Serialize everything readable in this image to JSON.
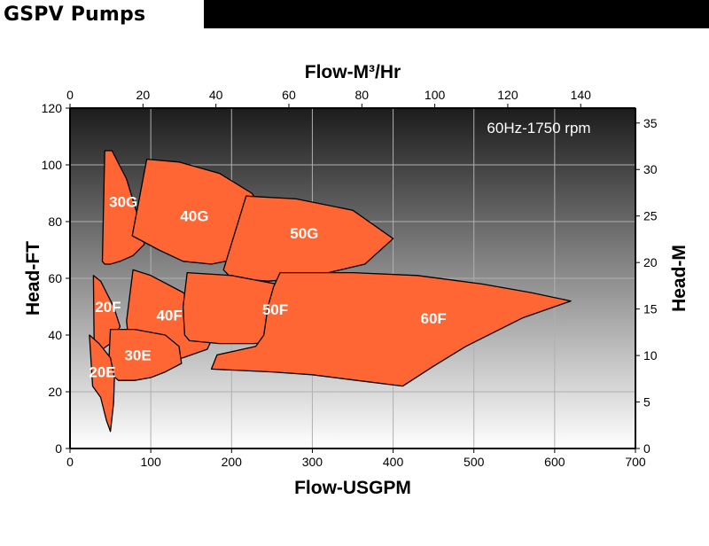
{
  "header": {
    "title": "GSPV Pumps"
  },
  "chart_data": {
    "type": "area",
    "title": "",
    "subtitle": "60Hz-1750 rpm",
    "xlabel": "Flow-USGPM",
    "ylabel": "Head-FT",
    "x2label": "Flow-M³/Hr",
    "y2label": "Head-M",
    "xlim": [
      0,
      700
    ],
    "ylim": [
      0,
      120
    ],
    "x2lim": [
      0,
      155
    ],
    "y2lim": [
      0,
      36.6
    ],
    "x_ticks": [
      0,
      100,
      200,
      300,
      400,
      500,
      600,
      700
    ],
    "y_ticks": [
      0,
      20,
      40,
      60,
      80,
      100,
      120
    ],
    "x2_ticks": [
      0,
      20,
      40,
      60,
      80,
      100,
      120,
      140
    ],
    "y2_ticks": [
      0,
      5,
      10,
      15,
      20,
      25,
      30,
      35
    ],
    "grid": true,
    "colors": {
      "region_fill": "#FF6633",
      "region_stroke": "#000000",
      "label": "#FFFFFF",
      "plot_top": "#1a1a1a",
      "plot_bottom": "#ffffff"
    },
    "series": [
      {
        "name": "30G",
        "label_at": [
          66,
          87
        ],
        "points": [
          [
            43,
            105
          ],
          [
            52,
            105
          ],
          [
            70,
            95
          ],
          [
            86,
            80
          ],
          [
            92,
            72
          ],
          [
            78,
            68
          ],
          [
            62,
            66
          ],
          [
            50,
            65
          ],
          [
            43,
            65
          ],
          [
            40,
            66
          ]
        ]
      },
      {
        "name": "40G",
        "label_at": [
          154,
          82
        ],
        "points": [
          [
            95,
            102
          ],
          [
            135,
            101
          ],
          [
            185,
            97
          ],
          [
            225,
            90
          ],
          [
            250,
            80
          ],
          [
            235,
            72
          ],
          [
            210,
            67
          ],
          [
            175,
            65
          ],
          [
            140,
            66
          ],
          [
            110,
            70
          ],
          [
            77,
            75
          ]
        ]
      },
      {
        "name": "50G",
        "label_at": [
          290,
          76
        ],
        "points": [
          [
            218,
            89
          ],
          [
            280,
            88
          ],
          [
            350,
            84
          ],
          [
            400,
            74
          ],
          [
            365,
            65
          ],
          [
            290,
            60
          ],
          [
            245,
            59
          ],
          [
            200,
            60
          ],
          [
            190,
            63
          ]
        ]
      },
      {
        "name": "20F",
        "label_at": [
          47,
          50
        ],
        "points": [
          [
            29,
            61
          ],
          [
            38,
            59
          ],
          [
            54,
            50
          ],
          [
            62,
            43
          ],
          [
            50,
            37
          ],
          [
            40,
            35
          ],
          [
            30,
            35
          ]
        ]
      },
      {
        "name": "40F",
        "label_at": [
          123,
          47
        ],
        "points": [
          [
            78,
            63
          ],
          [
            100,
            61
          ],
          [
            140,
            55
          ],
          [
            175,
            47
          ],
          [
            178,
            40
          ],
          [
            170,
            35
          ],
          [
            140,
            32
          ],
          [
            112,
            30
          ],
          [
            95,
            31
          ],
          [
            74,
            34
          ],
          [
            70,
            45
          ]
        ]
      },
      {
        "name": "50F",
        "label_at": [
          254,
          49
        ],
        "points": [
          [
            145,
            62
          ],
          [
            200,
            61
          ],
          [
            255,
            58
          ],
          [
            330,
            53
          ],
          [
            322,
            45
          ],
          [
            295,
            40
          ],
          [
            268,
            38
          ],
          [
            228,
            37
          ],
          [
            185,
            37
          ],
          [
            148,
            38
          ],
          [
            142,
            40
          ],
          [
            140,
            50
          ]
        ]
      },
      {
        "name": "60F",
        "label_at": [
          450,
          46
        ],
        "points": [
          [
            260,
            62
          ],
          [
            350,
            62
          ],
          [
            430,
            61
          ],
          [
            510,
            58
          ],
          [
            570,
            55
          ],
          [
            620,
            52
          ],
          [
            560,
            46
          ],
          [
            490,
            36
          ],
          [
            450,
            29
          ],
          [
            412,
            22
          ],
          [
            355,
            24
          ],
          [
            300,
            26
          ],
          [
            250,
            27
          ],
          [
            175,
            28
          ],
          [
            182,
            33
          ],
          [
            230,
            36
          ],
          [
            240,
            40
          ],
          [
            245,
            50
          ],
          [
            252,
            57
          ]
        ]
      },
      {
        "name": "30E",
        "label_at": [
          84,
          33
        ],
        "points": [
          [
            50,
            42
          ],
          [
            80,
            42
          ],
          [
            118,
            40
          ],
          [
            135,
            36
          ],
          [
            138,
            30
          ],
          [
            118,
            27
          ],
          [
            100,
            25
          ],
          [
            80,
            24
          ],
          [
            60,
            24
          ],
          [
            52,
            26
          ],
          [
            48,
            30
          ]
        ]
      },
      {
        "name": "20E",
        "label_at": [
          40,
          27
        ],
        "points": [
          [
            24,
            40
          ],
          [
            36,
            37
          ],
          [
            50,
            32
          ],
          [
            55,
            25
          ],
          [
            54,
            16
          ],
          [
            50,
            6
          ],
          [
            45,
            10
          ],
          [
            38,
            18
          ],
          [
            28,
            22
          ]
        ]
      }
    ]
  }
}
